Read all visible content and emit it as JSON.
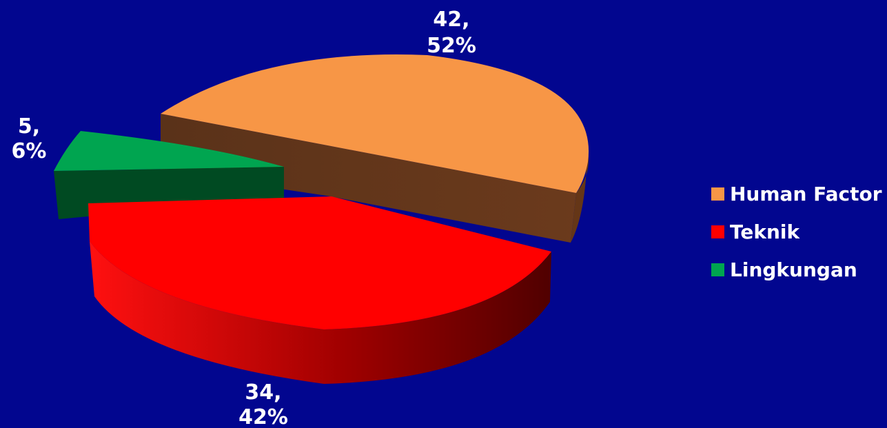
{
  "chart_data": {
    "type": "pie",
    "style": "3d-exploded",
    "legend_position": "right",
    "slices": [
      {
        "name": "Human Factor",
        "value": 42,
        "percent": "52%",
        "label_value": "42,",
        "label_percent": "52%",
        "color": "#f79646",
        "side_color": "#6b3a1c"
      },
      {
        "name": "Teknik",
        "value": 34,
        "percent": "42%",
        "label_value": "34,",
        "label_percent": "42%",
        "color": "#ff0000",
        "side_color": "#8a0000"
      },
      {
        "name": "Lingkungan",
        "value": 5,
        "percent": "6%",
        "label_value": "5,",
        "label_percent": "6%",
        "color": "#00a550",
        "side_color": "#004a22"
      }
    ]
  },
  "background_color": "#02068f"
}
